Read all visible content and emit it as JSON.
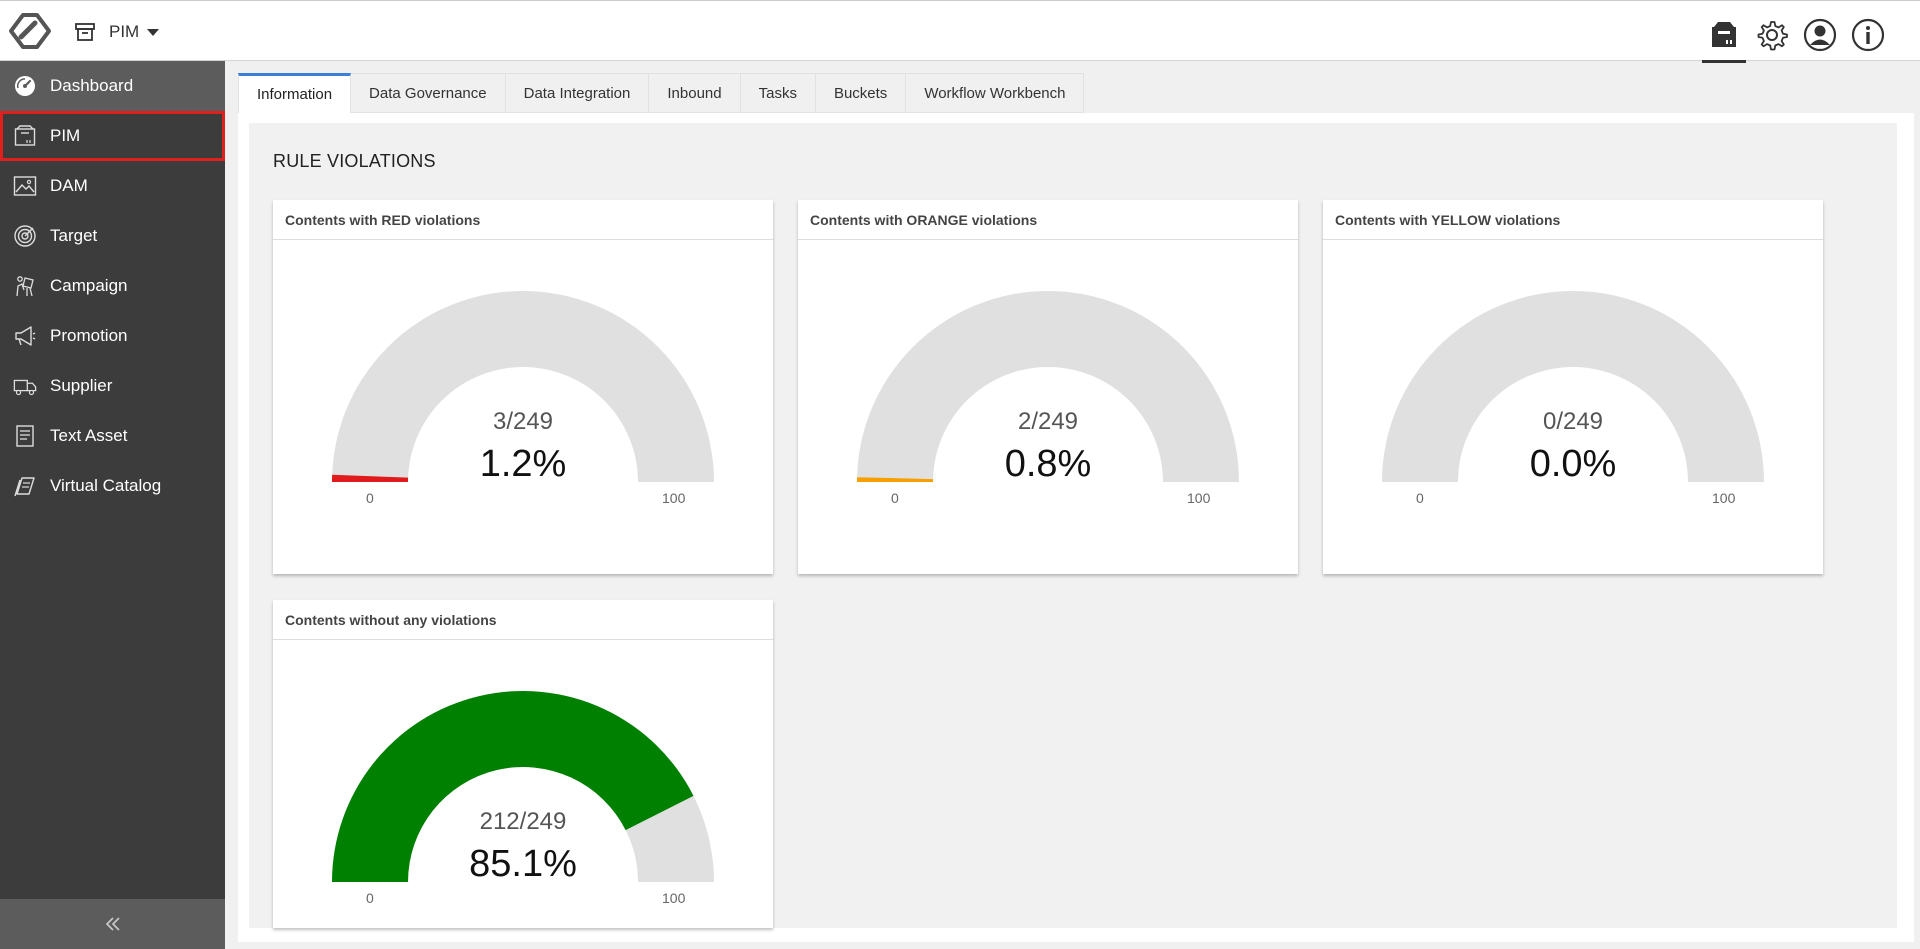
{
  "topbar": {
    "app_label": "PIM"
  },
  "sidebar": {
    "items": [
      {
        "label": "Dashboard",
        "icon": "dashboard-icon"
      },
      {
        "label": "PIM",
        "icon": "pim-box-icon"
      },
      {
        "label": "DAM",
        "icon": "image-icon"
      },
      {
        "label": "Target",
        "icon": "target-icon"
      },
      {
        "label": "Campaign",
        "icon": "campaign-icon"
      },
      {
        "label": "Promotion",
        "icon": "megaphone-icon"
      },
      {
        "label": "Supplier",
        "icon": "truck-icon"
      },
      {
        "label": "Text Asset",
        "icon": "document-icon"
      },
      {
        "label": "Virtual Catalog",
        "icon": "catalog-icon"
      }
    ],
    "selected": "PIM"
  },
  "tabs": [
    "Information",
    "Data Governance",
    "Data Integration",
    "Inbound",
    "Tasks",
    "Buckets",
    "Workflow Workbench"
  ],
  "active_tab": "Information",
  "section_title": "RULE VIOLATIONS",
  "gauges": [
    {
      "title": "Contents with RED violations",
      "fraction": "3/249",
      "percent": "1.2%",
      "value": 1.2,
      "min": "0",
      "max": "100",
      "color": "#e01b1b"
    },
    {
      "title": "Contents with ORANGE violations",
      "fraction": "2/249",
      "percent": "0.8%",
      "value": 0.8,
      "min": "0",
      "max": "100",
      "color": "#f5a000"
    },
    {
      "title": "Contents with YELLOW violations",
      "fraction": "0/249",
      "percent": "0.0%",
      "value": 0.0,
      "min": "0",
      "max": "100",
      "color": "#f2e200"
    },
    {
      "title": "Contents without any violations",
      "fraction": "212/249",
      "percent": "85.1%",
      "value": 85.1,
      "min": "0",
      "max": "100",
      "color": "#008000"
    }
  ],
  "colors": {
    "sidebar_bg": "#3c3c3c",
    "sidebar_highlight": "#5c5c5c",
    "selected_outline": "#e0201c",
    "active_tab_accent": "#3b7fd9",
    "gauge_track": "#e0e0e0"
  }
}
